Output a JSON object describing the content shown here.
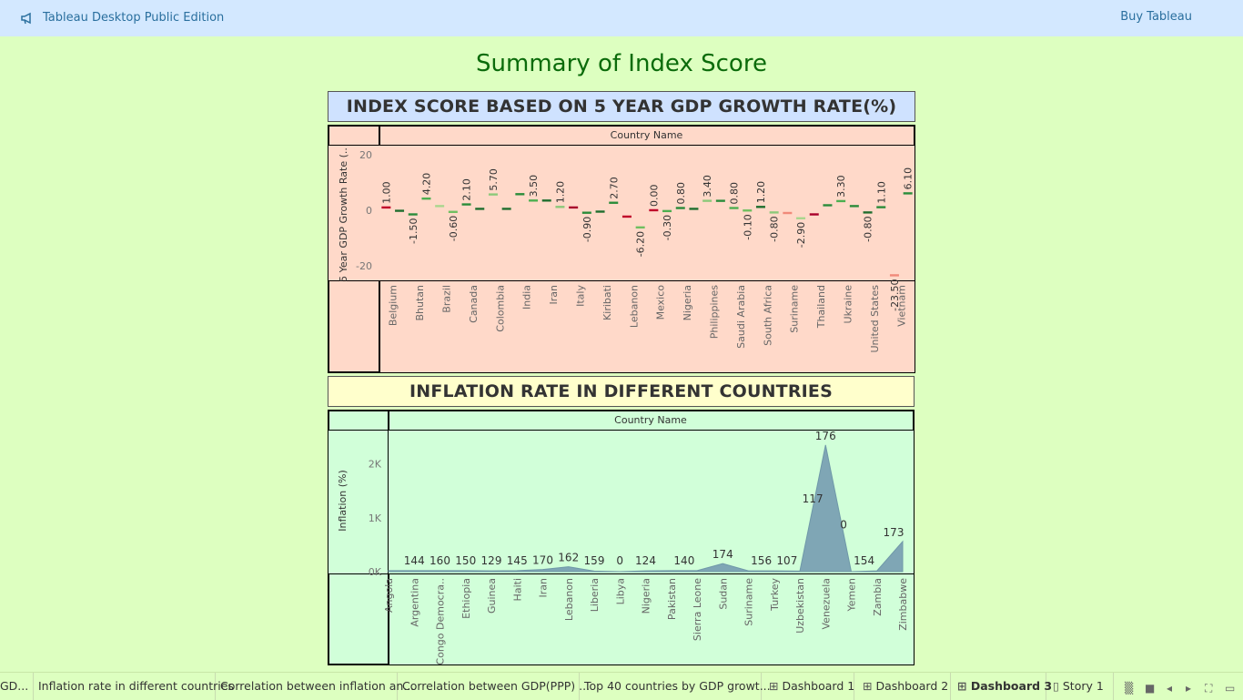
{
  "topbar": {
    "app_title": "Tableau Desktop Public Edition",
    "buy_label": "Buy Tableau"
  },
  "dashboard_title": "Summary of Index Score",
  "gdp_section": {
    "header": "INDEX SCORE BASED ON 5 YEAR GDP GROWTH RATE(%)",
    "column_header": "Country Name",
    "ylabel": "5 Year GDP Growth Rate (..",
    "ticks": [
      "20",
      "0",
      "-20"
    ],
    "category_labels": [
      "Belgium",
      "Bhutan",
      "Brazil",
      "Canada",
      "Colombia",
      "India",
      "Iran",
      "Italy",
      "Kiribati",
      "Lebanon",
      "Mexico",
      "Nigeria",
      "Philippines",
      "Saudi Arabia",
      "South Africa",
      "Suriname",
      "Thailand",
      "Ukraine",
      "United States",
      "Vietnam"
    ]
  },
  "inflation_section": {
    "header": "INFLATION RATE IN DIFFERENT COUNTRIES",
    "column_header": "Country Name",
    "ylabel": "Inflation (%)",
    "ticks": [
      "2K",
      "1K",
      "0K"
    ]
  },
  "chart_data": [
    {
      "type": "line",
      "mark": "gantt-dash",
      "title": "INDEX SCORE BASED ON 5 YEAR GDP GROWTH RATE(%)",
      "xlabel": "Country Name",
      "ylabel": "5 Year GDP Growth Rate (..",
      "ylim": [
        -25,
        23
      ],
      "points": [
        {
          "v": 1.0,
          "label": "1.00",
          "color": "#c0002a"
        },
        {
          "v": -0.2,
          "label": "",
          "color": "#1f6e2e"
        },
        {
          "v": -1.5,
          "label": "-1.50",
          "color": "#2a8c3a"
        },
        {
          "v": 4.2,
          "label": "4.20",
          "color": "#4caf50"
        },
        {
          "v": 1.5,
          "label": "",
          "color": "#a9d68d"
        },
        {
          "v": -0.6,
          "label": "-0.60",
          "color": "#6fbf60"
        },
        {
          "v": 2.1,
          "label": "2.10",
          "color": "#2a8c3a"
        },
        {
          "v": 0.5,
          "label": "",
          "color": "#1f6e2e"
        },
        {
          "v": 5.7,
          "label": "5.70",
          "color": "#8cc97a"
        },
        {
          "v": 0.5,
          "label": "",
          "color": "#1f6e2e"
        },
        {
          "v": 5.8,
          "label": "",
          "color": "#2a8c3a"
        },
        {
          "v": 3.5,
          "label": "3.50",
          "color": "#4caf50"
        },
        {
          "v": 3.5,
          "label": "",
          "color": "#1f6e2e"
        },
        {
          "v": 1.2,
          "label": "1.20",
          "color": "#8cc97a"
        },
        {
          "v": 1.0,
          "label": "",
          "color": "#a8002a"
        },
        {
          "v": -0.9,
          "label": "-0.90",
          "color": "#2a8c3a"
        },
        {
          "v": -0.5,
          "label": "",
          "color": "#1f6e2e"
        },
        {
          "v": 2.7,
          "label": "2.70",
          "color": "#2a8c3a"
        },
        {
          "v": -2.3,
          "label": "",
          "color": "#c0002a"
        },
        {
          "v": -6.2,
          "label": "-6.20",
          "color": "#6fbf60"
        },
        {
          "v": 0.0,
          "label": "0.00",
          "color": "#c0002a"
        },
        {
          "v": -0.3,
          "label": "-0.30",
          "color": "#4caf50"
        },
        {
          "v": 0.8,
          "label": "0.80",
          "color": "#2a8c3a"
        },
        {
          "v": 0.5,
          "label": "",
          "color": "#1f6e2e"
        },
        {
          "v": 3.4,
          "label": "3.40",
          "color": "#8cc97a"
        },
        {
          "v": 3.4,
          "label": "",
          "color": "#2a8c3a"
        },
        {
          "v": 0.8,
          "label": "0.80",
          "color": "#4caf50"
        },
        {
          "v": -0.1,
          "label": "-0.10",
          "color": "#6fbf60"
        },
        {
          "v": 1.2,
          "label": "1.20",
          "color": "#1f6e2e"
        },
        {
          "v": -0.8,
          "label": "-0.80",
          "color": "#8cc97a"
        },
        {
          "v": -1.0,
          "label": "",
          "color": "#f08a7a"
        },
        {
          "v": -2.9,
          "label": "-2.90",
          "color": "#a9d68d"
        },
        {
          "v": -1.5,
          "label": "",
          "color": "#a8002a"
        },
        {
          "v": 1.8,
          "label": "",
          "color": "#2a8c3a"
        },
        {
          "v": 3.3,
          "label": "3.30",
          "color": "#4caf50"
        },
        {
          "v": 1.5,
          "label": "",
          "color": "#2a8c3a"
        },
        {
          "v": -0.8,
          "label": "-0.80",
          "color": "#1f6e2e"
        },
        {
          "v": 1.1,
          "label": "1.10",
          "color": "#2a8c3a"
        },
        {
          "v": -23.5,
          "label": "-23.50",
          "color": "#f08a7a"
        },
        {
          "v": 6.1,
          "label": "6.10",
          "color": "#2a8c3a"
        }
      ]
    },
    {
      "type": "area",
      "title": "INFLATION RATE IN DIFFERENT COUNTRIES",
      "xlabel": "Country Name",
      "ylabel": "Inflation (%)",
      "ylim": [
        0,
        2500
      ],
      "categories": [
        "Angola",
        "Argentina",
        "Congo Democra..",
        "Ethiopia",
        "Guinea",
        "Haiti",
        "Iran",
        "Lebanon",
        "Liberia",
        "Libya",
        "Nigeria",
        "Pakistan",
        "Sierra Leone",
        "Sudan",
        "Suriname",
        "Turkey",
        "Uzbekistan",
        "Venezuela",
        "Yemen",
        "Zambia",
        "Zimbabwe"
      ],
      "values": [
        20,
        20,
        20,
        20,
        15,
        20,
        40,
        90,
        10,
        0,
        15,
        20,
        20,
        150,
        15,
        15,
        10,
        2350,
        0,
        15,
        560
      ],
      "data_labels": [
        {
          "text": "144",
          "after": 1
        },
        {
          "text": "160",
          "after": 2
        },
        {
          "text": "150",
          "after": 3
        },
        {
          "text": "129",
          "after": 4
        },
        {
          "text": "145",
          "after": 5
        },
        {
          "text": "170",
          "after": 6
        },
        {
          "text": "162",
          "after": 7
        },
        {
          "text": "159",
          "after": 8
        },
        {
          "text": "0",
          "after": 9
        },
        {
          "text": "124",
          "after": 10
        },
        {
          "text": "140",
          "after": 11.5
        },
        {
          "text": "174",
          "after": 13
        },
        {
          "text": "156",
          "after": 14.5
        },
        {
          "text": "107",
          "after": 15.5
        },
        {
          "text": "117",
          "after": 16.5
        },
        {
          "text": "176",
          "after": 17
        },
        {
          "text": "0",
          "after": 17.7
        },
        {
          "text": "154",
          "after": 18.5
        },
        {
          "text": "173",
          "after": 20
        }
      ]
    }
  ],
  "tabs": [
    {
      "label": "GD...",
      "icon": "",
      "active": false
    },
    {
      "label": "Inflation rate in different countries",
      "icon": "",
      "active": false
    },
    {
      "label": "Correlation between inflation an...",
      "icon": "",
      "active": false
    },
    {
      "label": "Correlation between GDP(PPP) ...",
      "icon": "",
      "active": false
    },
    {
      "label": "Top 40 countries by GDP growt...",
      "icon": "",
      "active": false
    },
    {
      "label": "Dashboard 1",
      "icon": "dashboard-icon",
      "active": false
    },
    {
      "label": "Dashboard 2",
      "icon": "dashboard-icon",
      "active": false
    },
    {
      "label": "Dashboard 3",
      "icon": "dashboard-icon",
      "active": true
    },
    {
      "label": "Story 1",
      "icon": "story-icon",
      "active": false
    }
  ]
}
